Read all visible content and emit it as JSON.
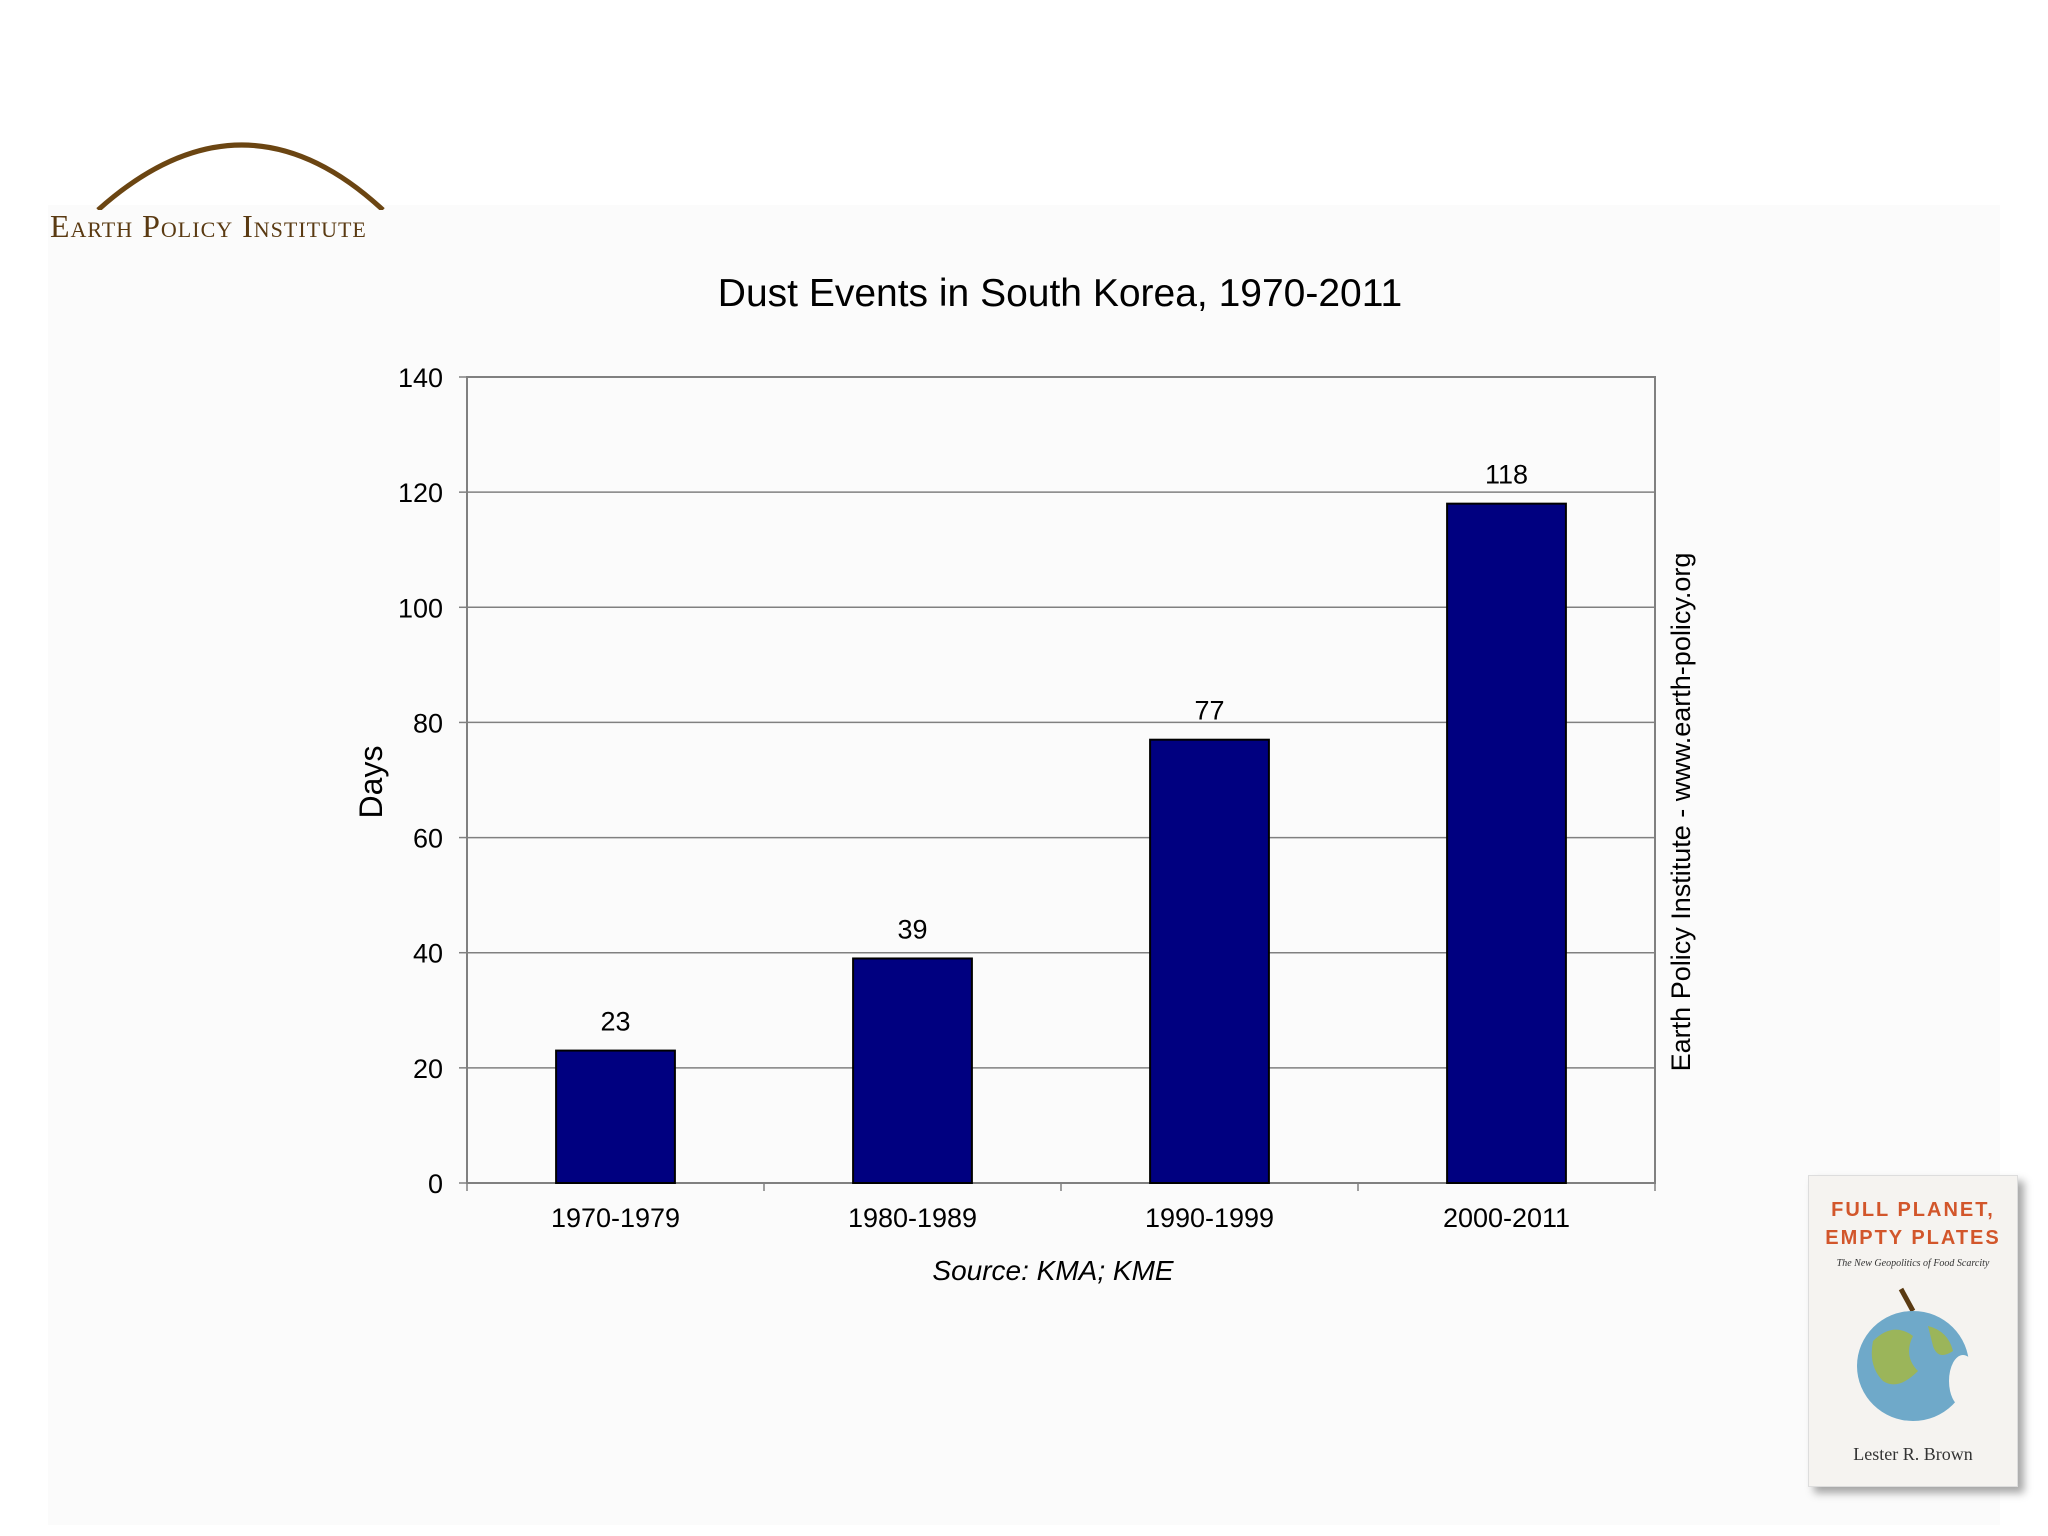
{
  "logo": {
    "text": "Earth Policy Institute",
    "color": "#5a3a12"
  },
  "chart_data": {
    "type": "bar",
    "title": "Dust Events in South Korea, 1970-2011",
    "xlabel": "",
    "ylabel": "Days",
    "categories": [
      "1970-1979",
      "1980-1989",
      "1990-1999",
      "2000-2011"
    ],
    "values": [
      23,
      39,
      77,
      118
    ],
    "data_labels": [
      "23",
      "39",
      "77",
      "118"
    ],
    "ylim": [
      0,
      140
    ],
    "yticks": [
      0,
      20,
      40,
      60,
      80,
      100,
      120,
      140
    ],
    "grid": true,
    "bar_color": "#000080",
    "source": "Source: KMA; KME",
    "watermark": "Earth Policy Institute - www.earth-policy.org"
  },
  "book": {
    "title_line1": "FULL PLANET,",
    "title_line2": "EMPTY PLATES",
    "subtitle": "The New Geopolitics of Food Scarcity",
    "author": "Lester R. Brown"
  }
}
